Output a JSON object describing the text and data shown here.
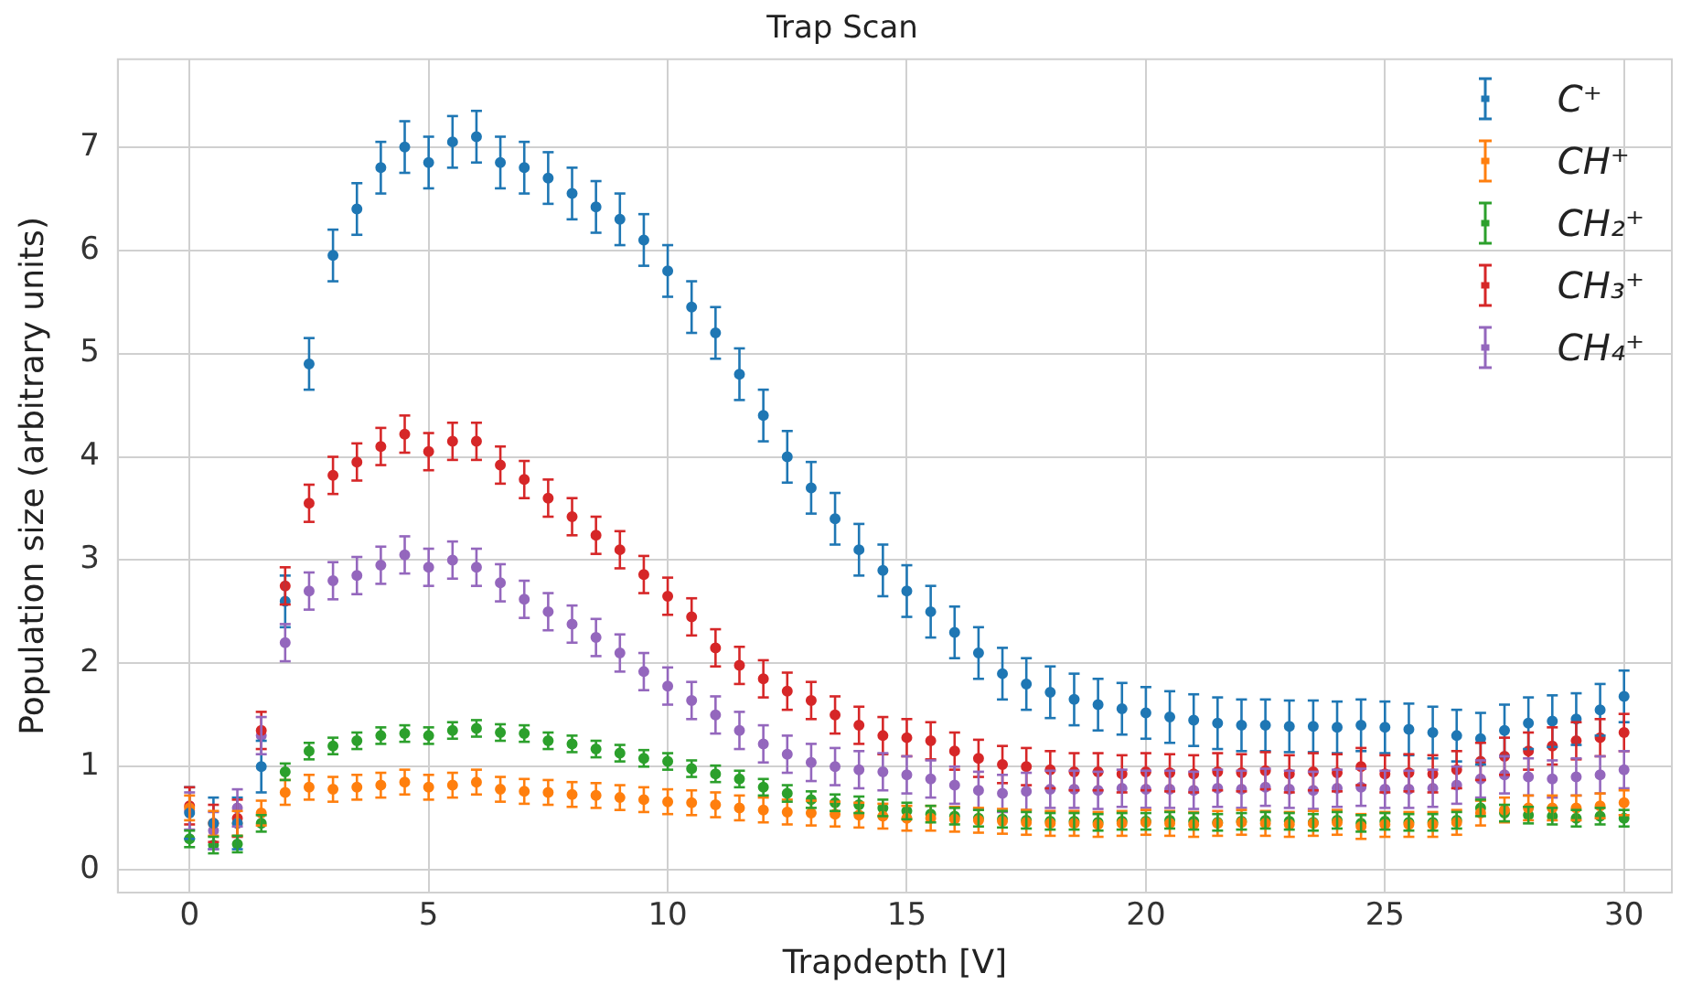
{
  "chart_data": {
    "type": "scatter",
    "title": "Trap Scan",
    "xlabel": "Trapdepth [V]",
    "ylabel": "Population size (arbitrary units)",
    "x": [
      0,
      0.5,
      1,
      1.5,
      2,
      2.5,
      3,
      3.5,
      4,
      4.5,
      5,
      5.5,
      6,
      6.5,
      7,
      7.5,
      8,
      8.5,
      9,
      9.5,
      10,
      10.5,
      11,
      11.5,
      12,
      12.5,
      13,
      13.5,
      14,
      14.5,
      15,
      15.5,
      16,
      16.5,
      17,
      17.5,
      18,
      18.5,
      19,
      19.5,
      20,
      20.5,
      21,
      21.5,
      22,
      22.5,
      23,
      23.5,
      24,
      24.5,
      25,
      25.5,
      26,
      26.5,
      27,
      27.5,
      28,
      28.5,
      29,
      29.5,
      30
    ],
    "series": [
      {
        "name": "C⁺",
        "color": "#1f77b4",
        "values": [
          0.55,
          0.45,
          0.45,
          1.0,
          2.6,
          4.9,
          5.95,
          6.4,
          6.8,
          7.0,
          6.85,
          7.05,
          7.1,
          6.85,
          6.8,
          6.7,
          6.55,
          6.42,
          6.3,
          6.1,
          5.8,
          5.45,
          5.2,
          4.8,
          4.4,
          4.0,
          3.7,
          3.4,
          3.1,
          2.9,
          2.7,
          2.5,
          2.3,
          2.1,
          1.9,
          1.8,
          1.72,
          1.65,
          1.6,
          1.56,
          1.52,
          1.48,
          1.45,
          1.42,
          1.4,
          1.4,
          1.39,
          1.39,
          1.38,
          1.4,
          1.38,
          1.36,
          1.33,
          1.3,
          1.27,
          1.35,
          1.42,
          1.44,
          1.46,
          1.55,
          1.68
        ],
        "errors": [
          0.25,
          0.25,
          0.25,
          0.25,
          0.25,
          0.25,
          0.25,
          0.25,
          0.25,
          0.25,
          0.25,
          0.25,
          0.25,
          0.25,
          0.25,
          0.25,
          0.25,
          0.25,
          0.25,
          0.25,
          0.25,
          0.25,
          0.25,
          0.25,
          0.25,
          0.25,
          0.25,
          0.25,
          0.25,
          0.25,
          0.25,
          0.25,
          0.25,
          0.25,
          0.25,
          0.25,
          0.25,
          0.25,
          0.25,
          0.25,
          0.25,
          0.25,
          0.25,
          0.25,
          0.25,
          0.25,
          0.25,
          0.25,
          0.25,
          0.25,
          0.25,
          0.25,
          0.25,
          0.25,
          0.25,
          0.25,
          0.25,
          0.25,
          0.25,
          0.25,
          0.25
        ]
      },
      {
        "name": "CH⁺",
        "color": "#ff7f0e",
        "values": [
          0.6,
          0.45,
          0.45,
          0.55,
          0.75,
          0.8,
          0.78,
          0.8,
          0.82,
          0.85,
          0.8,
          0.82,
          0.85,
          0.78,
          0.76,
          0.75,
          0.73,
          0.72,
          0.7,
          0.68,
          0.66,
          0.65,
          0.63,
          0.6,
          0.58,
          0.56,
          0.55,
          0.54,
          0.53,
          0.52,
          0.5,
          0.5,
          0.49,
          0.48,
          0.47,
          0.46,
          0.45,
          0.45,
          0.44,
          0.45,
          0.46,
          0.45,
          0.44,
          0.45,
          0.46,
          0.45,
          0.44,
          0.45,
          0.46,
          0.42,
          0.44,
          0.44,
          0.44,
          0.46,
          0.55,
          0.58,
          0.6,
          0.6,
          0.6,
          0.62,
          0.65
        ],
        "errors": [
          0.12,
          0.12,
          0.12,
          0.12,
          0.12,
          0.12,
          0.12,
          0.12,
          0.12,
          0.12,
          0.12,
          0.12,
          0.12,
          0.12,
          0.12,
          0.12,
          0.12,
          0.12,
          0.12,
          0.12,
          0.12,
          0.12,
          0.12,
          0.12,
          0.12,
          0.12,
          0.12,
          0.12,
          0.12,
          0.12,
          0.12,
          0.12,
          0.12,
          0.12,
          0.12,
          0.12,
          0.12,
          0.12,
          0.12,
          0.12,
          0.12,
          0.12,
          0.12,
          0.12,
          0.12,
          0.12,
          0.12,
          0.12,
          0.12,
          0.12,
          0.12,
          0.12,
          0.12,
          0.12,
          0.12,
          0.12,
          0.12,
          0.12,
          0.12,
          0.12,
          0.12
        ]
      },
      {
        "name": "CH₂⁺",
        "color": "#2ca02c",
        "values": [
          0.3,
          0.24,
          0.25,
          0.45,
          0.95,
          1.15,
          1.2,
          1.25,
          1.3,
          1.32,
          1.3,
          1.35,
          1.37,
          1.33,
          1.32,
          1.25,
          1.22,
          1.17,
          1.13,
          1.08,
          1.05,
          0.98,
          0.93,
          0.88,
          0.8,
          0.74,
          0.68,
          0.65,
          0.63,
          0.6,
          0.57,
          0.54,
          0.52,
          0.5,
          0.49,
          0.48,
          0.47,
          0.47,
          0.46,
          0.47,
          0.47,
          0.48,
          0.47,
          0.46,
          0.47,
          0.48,
          0.47,
          0.46,
          0.48,
          0.45,
          0.47,
          0.46,
          0.46,
          0.48,
          0.6,
          0.55,
          0.53,
          0.52,
          0.5,
          0.52,
          0.5
        ],
        "errors": [
          0.08,
          0.08,
          0.08,
          0.08,
          0.08,
          0.08,
          0.08,
          0.08,
          0.08,
          0.08,
          0.08,
          0.08,
          0.08,
          0.08,
          0.08,
          0.08,
          0.08,
          0.08,
          0.08,
          0.08,
          0.08,
          0.08,
          0.08,
          0.08,
          0.08,
          0.08,
          0.08,
          0.08,
          0.08,
          0.08,
          0.08,
          0.08,
          0.08,
          0.08,
          0.08,
          0.08,
          0.08,
          0.08,
          0.08,
          0.08,
          0.08,
          0.08,
          0.08,
          0.08,
          0.08,
          0.08,
          0.08,
          0.08,
          0.08,
          0.08,
          0.08,
          0.08,
          0.08,
          0.08,
          0.08,
          0.08,
          0.08,
          0.08,
          0.08,
          0.08,
          0.08
        ]
      },
      {
        "name": "CH₃⁺",
        "color": "#d62728",
        "values": [
          0.62,
          0.45,
          0.5,
          1.35,
          2.75,
          3.55,
          3.82,
          3.95,
          4.1,
          4.22,
          4.05,
          4.15,
          4.15,
          3.92,
          3.78,
          3.6,
          3.42,
          3.24,
          3.1,
          2.86,
          2.65,
          2.45,
          2.15,
          1.98,
          1.85,
          1.73,
          1.64,
          1.5,
          1.4,
          1.3,
          1.28,
          1.25,
          1.15,
          1.08,
          1.02,
          1.0,
          0.97,
          0.95,
          0.95,
          0.93,
          0.95,
          0.94,
          0.93,
          0.95,
          0.94,
          0.96,
          0.93,
          0.95,
          0.94,
          1.0,
          0.93,
          0.94,
          0.93,
          0.97,
          1.05,
          1.1,
          1.15,
          1.2,
          1.25,
          1.28,
          1.33
        ],
        "errors": [
          0.18,
          0.18,
          0.18,
          0.18,
          0.18,
          0.18,
          0.18,
          0.18,
          0.18,
          0.18,
          0.18,
          0.18,
          0.18,
          0.18,
          0.18,
          0.18,
          0.18,
          0.18,
          0.18,
          0.18,
          0.18,
          0.18,
          0.18,
          0.18,
          0.18,
          0.18,
          0.18,
          0.18,
          0.18,
          0.18,
          0.18,
          0.18,
          0.18,
          0.18,
          0.18,
          0.18,
          0.18,
          0.18,
          0.18,
          0.18,
          0.18,
          0.18,
          0.18,
          0.18,
          0.18,
          0.18,
          0.18,
          0.18,
          0.18,
          0.18,
          0.18,
          0.18,
          0.18,
          0.18,
          0.18,
          0.18,
          0.18,
          0.18,
          0.18,
          0.18,
          0.18
        ]
      },
      {
        "name": "CH₄⁺",
        "color": "#9467bd",
        "values": [
          0.57,
          0.38,
          0.6,
          1.3,
          2.2,
          2.7,
          2.8,
          2.85,
          2.95,
          3.05,
          2.93,
          3.0,
          2.93,
          2.78,
          2.62,
          2.5,
          2.38,
          2.25,
          2.1,
          1.92,
          1.78,
          1.64,
          1.5,
          1.35,
          1.22,
          1.12,
          1.04,
          1.0,
          0.97,
          0.95,
          0.92,
          0.88,
          0.82,
          0.77,
          0.74,
          0.76,
          0.78,
          0.78,
          0.77,
          0.79,
          0.78,
          0.78,
          0.77,
          0.79,
          0.78,
          0.8,
          0.78,
          0.77,
          0.79,
          0.8,
          0.78,
          0.78,
          0.79,
          0.82,
          0.88,
          0.92,
          0.9,
          0.88,
          0.9,
          0.92,
          0.97
        ],
        "errors": [
          0.18,
          0.18,
          0.18,
          0.18,
          0.18,
          0.18,
          0.18,
          0.18,
          0.18,
          0.18,
          0.18,
          0.18,
          0.18,
          0.18,
          0.18,
          0.18,
          0.18,
          0.18,
          0.18,
          0.18,
          0.18,
          0.18,
          0.18,
          0.18,
          0.18,
          0.18,
          0.18,
          0.18,
          0.18,
          0.18,
          0.18,
          0.18,
          0.18,
          0.18,
          0.18,
          0.18,
          0.18,
          0.18,
          0.18,
          0.18,
          0.18,
          0.18,
          0.18,
          0.18,
          0.18,
          0.18,
          0.18,
          0.18,
          0.18,
          0.18,
          0.18,
          0.18,
          0.18,
          0.18,
          0.18,
          0.18,
          0.18,
          0.18,
          0.18,
          0.18,
          0.18
        ]
      }
    ],
    "xlim": [
      -1.5,
      31.0
    ],
    "ylim": [
      -0.22,
      7.85
    ],
    "xticks": [
      0,
      5,
      10,
      15,
      20,
      25,
      30
    ],
    "yticks": [
      0,
      1,
      2,
      3,
      4,
      5,
      6,
      7
    ],
    "grid": true,
    "legend": "top right",
    "marker": "circle"
  }
}
